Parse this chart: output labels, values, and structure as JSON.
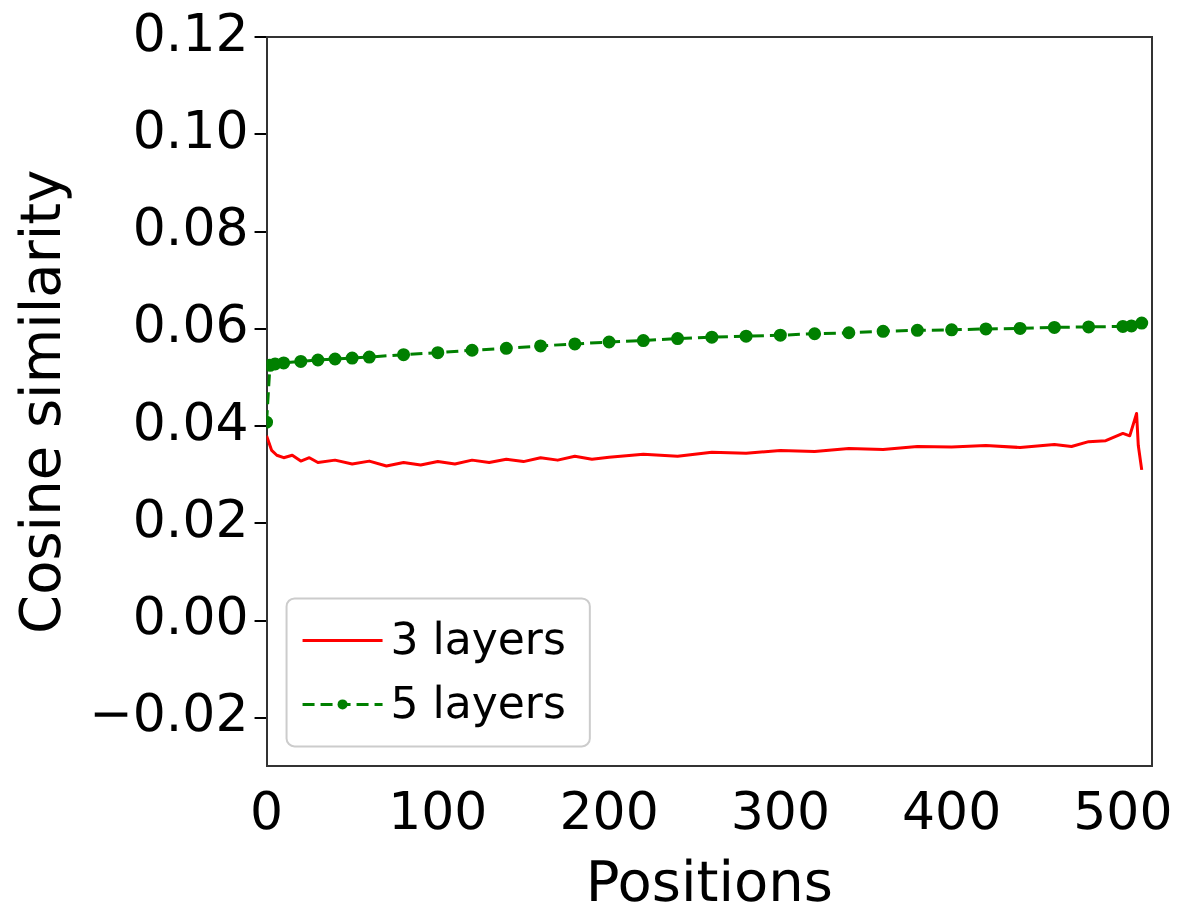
{
  "chart_data": {
    "type": "line",
    "xlabel": "Positions",
    "ylabel": "Cosine similarity",
    "xlim": [
      0,
      517
    ],
    "ylim": [
      -0.03,
      0.12
    ],
    "xticks": [
      0,
      100,
      200,
      300,
      400,
      500
    ],
    "yticks": [
      {
        "value": -0.02,
        "label": "−0.02"
      },
      {
        "value": 0,
        "label": "0.00"
      },
      {
        "value": 0.02,
        "label": "0.02"
      },
      {
        "value": 0.04,
        "label": "0.04"
      },
      {
        "value": 0.06,
        "label": "0.06"
      },
      {
        "value": 0.08,
        "label": "0.08"
      },
      {
        "value": 0.1,
        "label": "0.10"
      },
      {
        "value": 0.12,
        "label": "0.12"
      }
    ],
    "grid": false,
    "legend": "bottom left",
    "series": [
      {
        "name": "3 layers",
        "color": "#ff0000",
        "line_style": "solid",
        "marker": "none",
        "x": [
          0,
          3,
          6,
          10,
          15,
          20,
          25,
          30,
          40,
          50,
          60,
          70,
          80,
          90,
          100,
          110,
          120,
          130,
          140,
          150,
          160,
          170,
          180,
          190,
          200,
          220,
          240,
          260,
          280,
          300,
          320,
          340,
          360,
          380,
          400,
          420,
          440,
          460,
          470,
          480,
          490,
          500,
          504,
          508,
          509,
          511
        ],
        "values": [
          0.038,
          0.035,
          0.034,
          0.0335,
          0.034,
          0.0328,
          0.0335,
          0.0325,
          0.033,
          0.0322,
          0.0328,
          0.0318,
          0.0325,
          0.032,
          0.0327,
          0.0322,
          0.033,
          0.0325,
          0.0332,
          0.0327,
          0.0335,
          0.033,
          0.0338,
          0.0332,
          0.0336,
          0.0342,
          0.0338,
          0.0346,
          0.0344,
          0.035,
          0.0348,
          0.0354,
          0.0352,
          0.0358,
          0.0357,
          0.036,
          0.0356,
          0.0362,
          0.0358,
          0.0368,
          0.037,
          0.0385,
          0.038,
          0.0426,
          0.036,
          0.031
        ]
      },
      {
        "name": "5 layers",
        "color": "#008000",
        "line_style": "dashed",
        "marker": "circle",
        "x": [
          0,
          2,
          5,
          10,
          20,
          30,
          40,
          50,
          60,
          80,
          100,
          120,
          140,
          160,
          180,
          200,
          220,
          240,
          260,
          280,
          300,
          320,
          340,
          360,
          380,
          400,
          420,
          440,
          460,
          480,
          500,
          505,
          511
        ],
        "values": [
          0.0408,
          0.0525,
          0.0528,
          0.053,
          0.0533,
          0.0536,
          0.0538,
          0.054,
          0.0542,
          0.0547,
          0.0551,
          0.0556,
          0.056,
          0.0565,
          0.0569,
          0.0573,
          0.0576,
          0.058,
          0.0583,
          0.0585,
          0.0587,
          0.059,
          0.0592,
          0.0595,
          0.0597,
          0.0598,
          0.06,
          0.0601,
          0.0603,
          0.0604,
          0.0605,
          0.0606,
          0.0612
        ]
      }
    ]
  }
}
